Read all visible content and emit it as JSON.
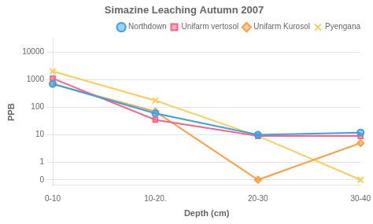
{
  "chart_data": {
    "type": "line",
    "title": "Simazine Leaching Autumn 2007",
    "xlabel": "Depth (cm)",
    "ylabel": "PPB",
    "categories": [
      "0-10",
      "10-20.",
      "20-30",
      "30-40"
    ],
    "series": [
      {
        "name": "Northdown",
        "marker": "circle",
        "values": [
          700,
          60,
          10,
          12
        ]
      },
      {
        "name": "Unifarm vertosol",
        "marker": "square",
        "values": [
          1100,
          35,
          9,
          9
        ]
      },
      {
        "name": "Unifarm Kurosol",
        "marker": "diamond",
        "values": [
          700,
          70,
          0,
          5
        ]
      },
      {
        "name": "Pyengana",
        "marker": "x",
        "values": [
          2000,
          175,
          9,
          0
        ]
      }
    ],
    "log": "y",
    "ylim": [
      -0.3,
      30000
    ],
    "yticks": [
      0,
      1,
      10,
      100,
      1000,
      10000
    ],
    "grid": true,
    "legend": "upper right"
  }
}
